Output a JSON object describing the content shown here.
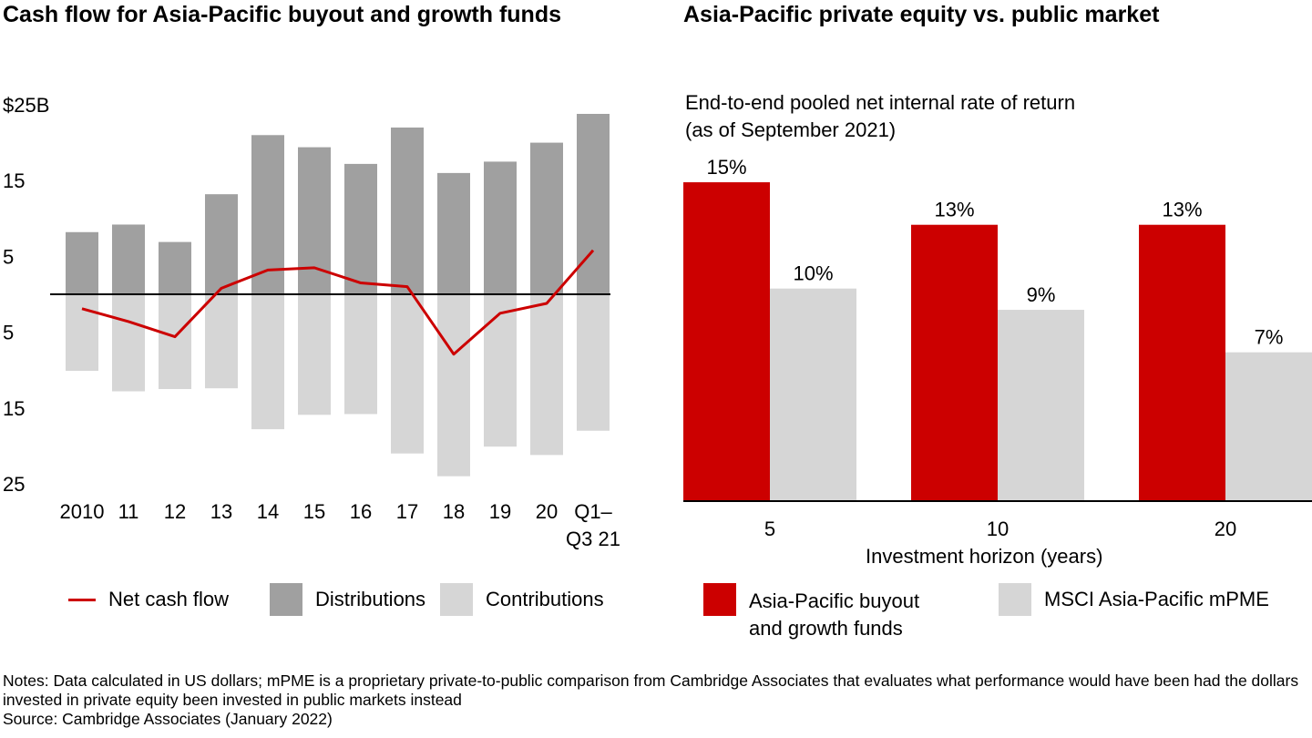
{
  "left_panel": {
    "title": "Cash flow for Asia-Pacific buyout and growth funds",
    "legend": {
      "net": "Net cash flow",
      "distributions": "Distributions",
      "contributions": "Contributions"
    }
  },
  "right_panel": {
    "title": "Asia-Pacific private equity vs. public market",
    "subtitle_line1": "End-to-end pooled net internal rate of return",
    "subtitle_line2": "(as of September 2021)",
    "xlabel": "Investment horizon (years)",
    "legend": {
      "pe_line1": "Asia-Pacific buyout",
      "pe_line2": "and growth funds",
      "pme": "MSCI Asia-Pacific mPME"
    }
  },
  "notes": {
    "line1": "Notes: Data calculated in US dollars; mPME is a proprietary private-to-public comparison from Cambridge Associates that evaluates what performance would have been had the dollars invested in private equity been invested in public markets instead",
    "source": "Source: Cambridge Associates (January 2022)"
  },
  "colors": {
    "distributions": "#a0a0a0",
    "contributions": "#d6d6d6",
    "net": "#cc0000",
    "pe": "#cc0000",
    "pme": "#d6d6d6"
  },
  "chart_data": [
    {
      "type": "bar",
      "title": "Cash flow for Asia-Pacific buyout and growth funds",
      "categories": [
        "2010",
        "11",
        "12",
        "13",
        "14",
        "15",
        "16",
        "17",
        "18",
        "19",
        "20",
        "Q1–Q3 21"
      ],
      "y_tick_labels": [
        "$25B",
        "15",
        "5",
        "5",
        "15",
        "25"
      ],
      "ylim": [
        -25,
        25
      ],
      "series": [
        {
          "name": "Distributions",
          "values": [
            8.2,
            9.2,
            6.9,
            13.2,
            21.0,
            19.4,
            17.2,
            22.0,
            16.0,
            17.5,
            20.0,
            23.8
          ]
        },
        {
          "name": "Contributions",
          "values": [
            -10.1,
            -12.8,
            -12.5,
            -12.4,
            -17.8,
            -15.9,
            -15.8,
            -21.0,
            -24.0,
            -20.1,
            -21.2,
            -18.0
          ]
        },
        {
          "name": "Net cash flow",
          "values": [
            -1.9,
            -3.6,
            -5.6,
            0.8,
            3.2,
            3.5,
            1.5,
            1.0,
            -7.9,
            -2.5,
            -1.2,
            5.8
          ]
        }
      ]
    },
    {
      "type": "bar",
      "title": "Asia-Pacific private equity vs. public market",
      "xlabel": "Investment horizon (years)",
      "categories": [
        "5",
        "10",
        "20"
      ],
      "series": [
        {
          "name": "Asia-Pacific buyout and growth funds",
          "values": [
            15,
            13,
            13
          ],
          "labels": [
            "15%",
            "13%",
            "13%"
          ]
        },
        {
          "name": "MSCI Asia-Pacific mPME",
          "values": [
            10,
            9,
            7
          ],
          "labels": [
            "10%",
            "9%",
            "7%"
          ]
        }
      ]
    }
  ]
}
